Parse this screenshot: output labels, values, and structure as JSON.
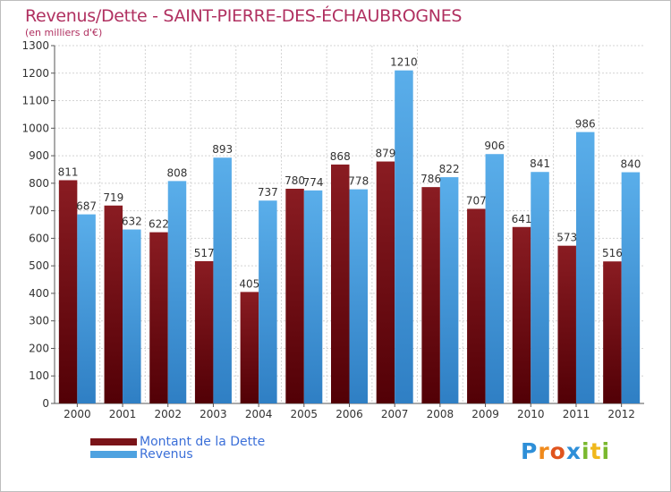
{
  "chart_data": {
    "type": "bar",
    "title": "Revenus/Dette - SAINT-PIERRE-DES-ÉCHAUBROGNES",
    "subtitle": "(en milliers d'€)",
    "xlabel": "",
    "ylabel": "",
    "ylim": [
      0,
      1300
    ],
    "yticks": [
      "0",
      "100",
      "200",
      "300",
      "400",
      "500",
      "600",
      "700",
      "800",
      "900",
      "1000",
      "1100",
      "1200",
      "1300"
    ],
    "grid": true,
    "categories": [
      "2000",
      "2001",
      "2002",
      "2003",
      "2004",
      "2005",
      "2006",
      "2007",
      "2008",
      "2009",
      "2010",
      "2011",
      "2012"
    ],
    "series": [
      {
        "name": "Montant de la Dette",
        "color": "#7a1418",
        "values": [
          811,
          719,
          622,
          517,
          405,
          780,
          868,
          879,
          786,
          707,
          641,
          573,
          516
        ]
      },
      {
        "name": "Revenus",
        "color": "#4ea2e0",
        "values": [
          687,
          632,
          808,
          893,
          737,
          774,
          778,
          1210,
          822,
          906,
          841,
          986,
          840
        ]
      }
    ],
    "legend_position": "bottom-left"
  },
  "logo": {
    "letters": [
      {
        "ch": "P",
        "color": "#2e8fd8"
      },
      {
        "ch": "r",
        "color": "#f08a1c"
      },
      {
        "ch": "o",
        "color": "#e0541e"
      },
      {
        "ch": "x",
        "color": "#2e8fd8"
      },
      {
        "ch": "i",
        "color": "#7ab82e"
      },
      {
        "ch": "t",
        "color": "#f0b81c"
      },
      {
        "ch": "i",
        "color": "#7ab82e"
      }
    ]
  }
}
